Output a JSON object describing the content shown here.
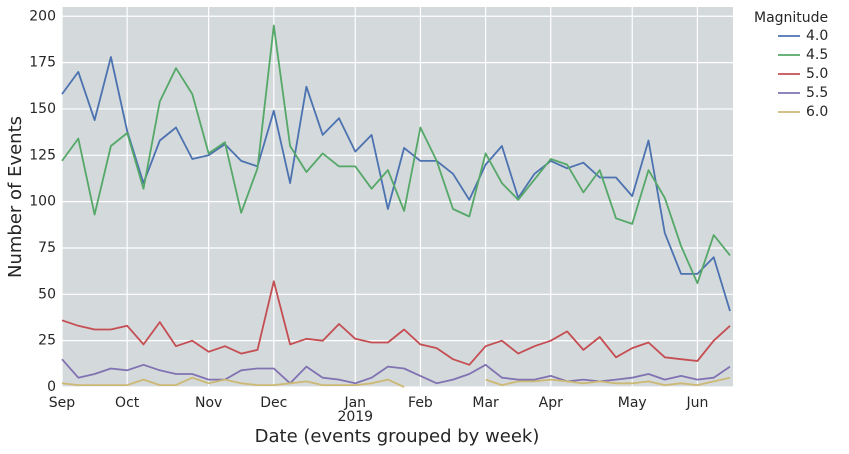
{
  "chart_data": {
    "type": "line",
    "xlabel": "Date (events grouped by week)",
    "ylabel": "Number of Events",
    "year_label": "2019",
    "legend_title": "Magnitude",
    "legend_position": "outside-right",
    "grid": true,
    "background": "#d4d9dc",
    "categories": [
      "Sep",
      null,
      null,
      null,
      "Oct",
      null,
      null,
      null,
      null,
      "Nov",
      null,
      null,
      null,
      "Dec",
      null,
      null,
      null,
      null,
      "Jan",
      null,
      null,
      null,
      "Feb",
      null,
      null,
      null,
      "Mar",
      null,
      null,
      null,
      "Apr",
      null,
      null,
      null,
      null,
      "May",
      null,
      null,
      null,
      "Jun",
      null,
      null
    ],
    "ylim": [
      0,
      205
    ],
    "yticks": [
      0,
      25,
      50,
      75,
      100,
      125,
      150,
      175,
      200
    ],
    "series": [
      {
        "name": "4.0",
        "color": "#4c72b0",
        "values": [
          158,
          170,
          144,
          178,
          138,
          110,
          133,
          140,
          123,
          125,
          131,
          122,
          119,
          149,
          110,
          162,
          136,
          145,
          127,
          136,
          96,
          129,
          122,
          122,
          115,
          101,
          120,
          130,
          102,
          115,
          122,
          118,
          121,
          113,
          113,
          103,
          133,
          83,
          61,
          61,
          70,
          41
        ]
      },
      {
        "name": "4.5",
        "color": "#55a868",
        "values": [
          122,
          134,
          93,
          130,
          137,
          107,
          154,
          172,
          158,
          126,
          132,
          94,
          118,
          195,
          130,
          116,
          126,
          119,
          119,
          107,
          117,
          95,
          140,
          122,
          96,
          92,
          126,
          110,
          101,
          112,
          123,
          120,
          105,
          117,
          91,
          88,
          117,
          102,
          76,
          56,
          82,
          71
        ]
      },
      {
        "name": "5.0",
        "color": "#c44e52",
        "values": [
          36,
          33,
          31,
          31,
          33,
          23,
          35,
          22,
          25,
          19,
          22,
          18,
          20,
          57,
          23,
          26,
          25,
          34,
          26,
          24,
          24,
          31,
          23,
          21,
          15,
          12,
          22,
          25,
          18,
          22,
          25,
          30,
          20,
          27,
          16,
          21,
          24,
          16,
          15,
          14,
          25,
          33
        ]
      },
      {
        "name": "5.5",
        "color": "#8172b2",
        "values": [
          15,
          5,
          7,
          10,
          9,
          12,
          9,
          7,
          7,
          4,
          4,
          9,
          10,
          10,
          2,
          11,
          5,
          4,
          2,
          5,
          11,
          10,
          6,
          2,
          4,
          7,
          12,
          5,
          4,
          4,
          6,
          3,
          4,
          3,
          4,
          5,
          7,
          4,
          6,
          4,
          5,
          11
        ]
      },
      {
        "name": "6.0",
        "color": "#ccb974",
        "values": [
          2,
          1,
          1,
          1,
          1,
          4,
          1,
          1,
          5,
          2,
          4,
          2,
          1,
          1,
          2,
          3,
          1,
          1,
          1,
          2,
          4,
          0,
          null,
          null,
          null,
          null,
          4,
          1,
          3,
          3,
          4,
          3,
          2,
          3,
          2,
          2,
          3,
          1,
          2,
          1,
          3,
          5
        ]
      }
    ]
  }
}
